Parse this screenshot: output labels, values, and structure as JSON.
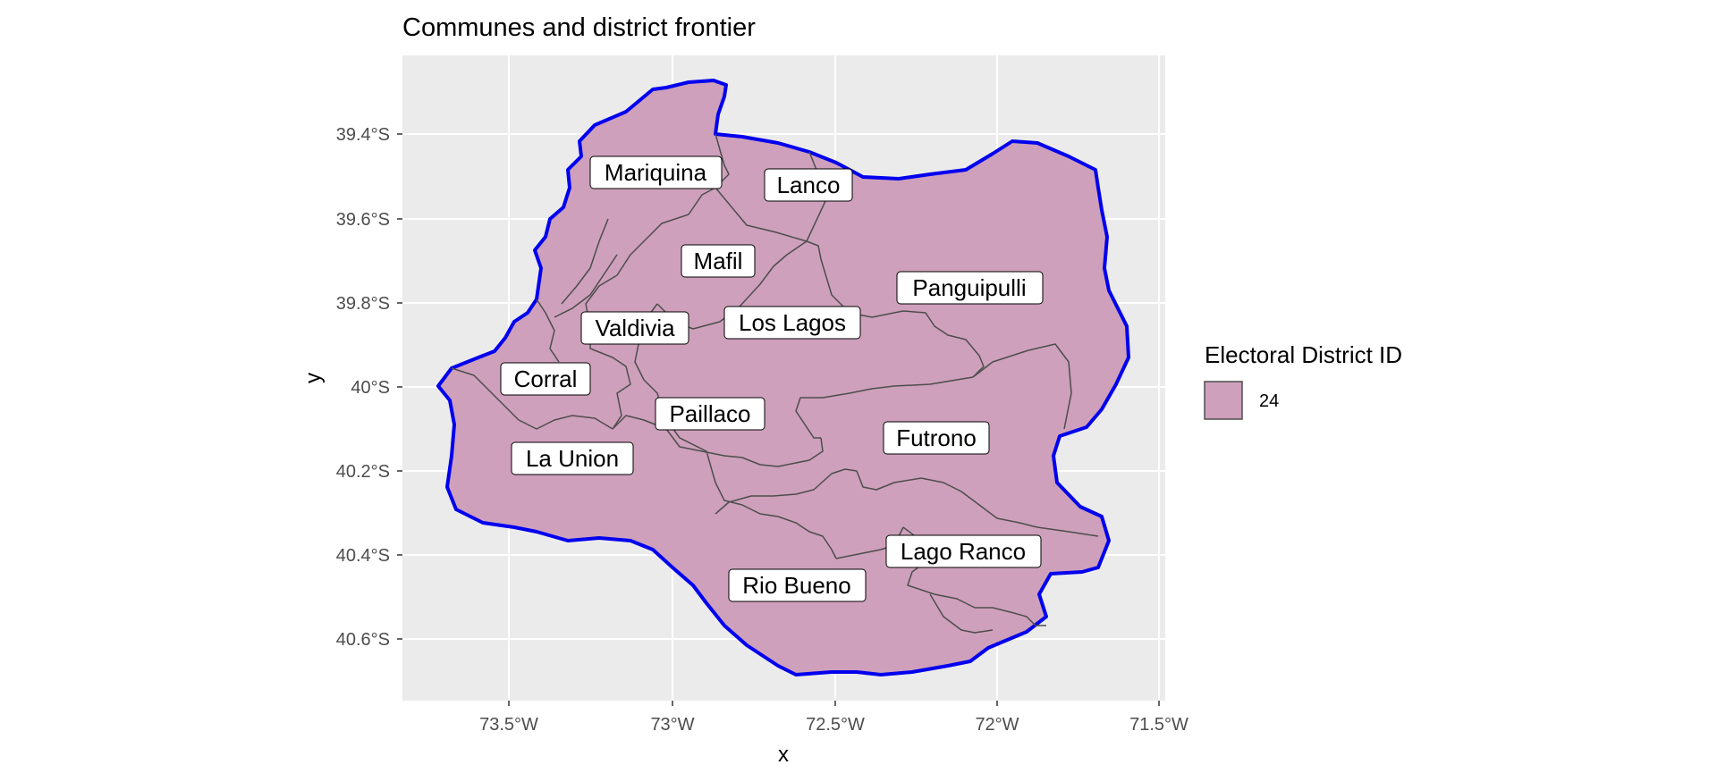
{
  "title": "Communes and district frontier",
  "axes": {
    "x_title": "x",
    "y_title": "y",
    "x_ticks": [
      "73.5°W",
      "73°W",
      "72.5°W",
      "72°W",
      "71.5°W"
    ],
    "y_ticks": [
      "39.4°S",
      "39.6°S",
      "39.8°S",
      "40°S",
      "40.2°S",
      "40.4°S",
      "40.6°S"
    ]
  },
  "legend": {
    "title": "Electoral District ID",
    "items": [
      {
        "label": "24",
        "color": "#cea0bb"
      }
    ]
  },
  "colors": {
    "panel_bg": "#ebebeb",
    "grid": "#ffffff",
    "fill": "#cea0bb",
    "commune_border": "#4d4d4d",
    "district_frontier": "#0000ee"
  },
  "communes": [
    "Mariquina",
    "Lanco",
    "Mafil",
    "Panguipulli",
    "Los Lagos",
    "Valdivia",
    "Corral",
    "Paillaco",
    "Futrono",
    "La Union",
    "Lago Ranco",
    "Rio Bueno"
  ]
}
